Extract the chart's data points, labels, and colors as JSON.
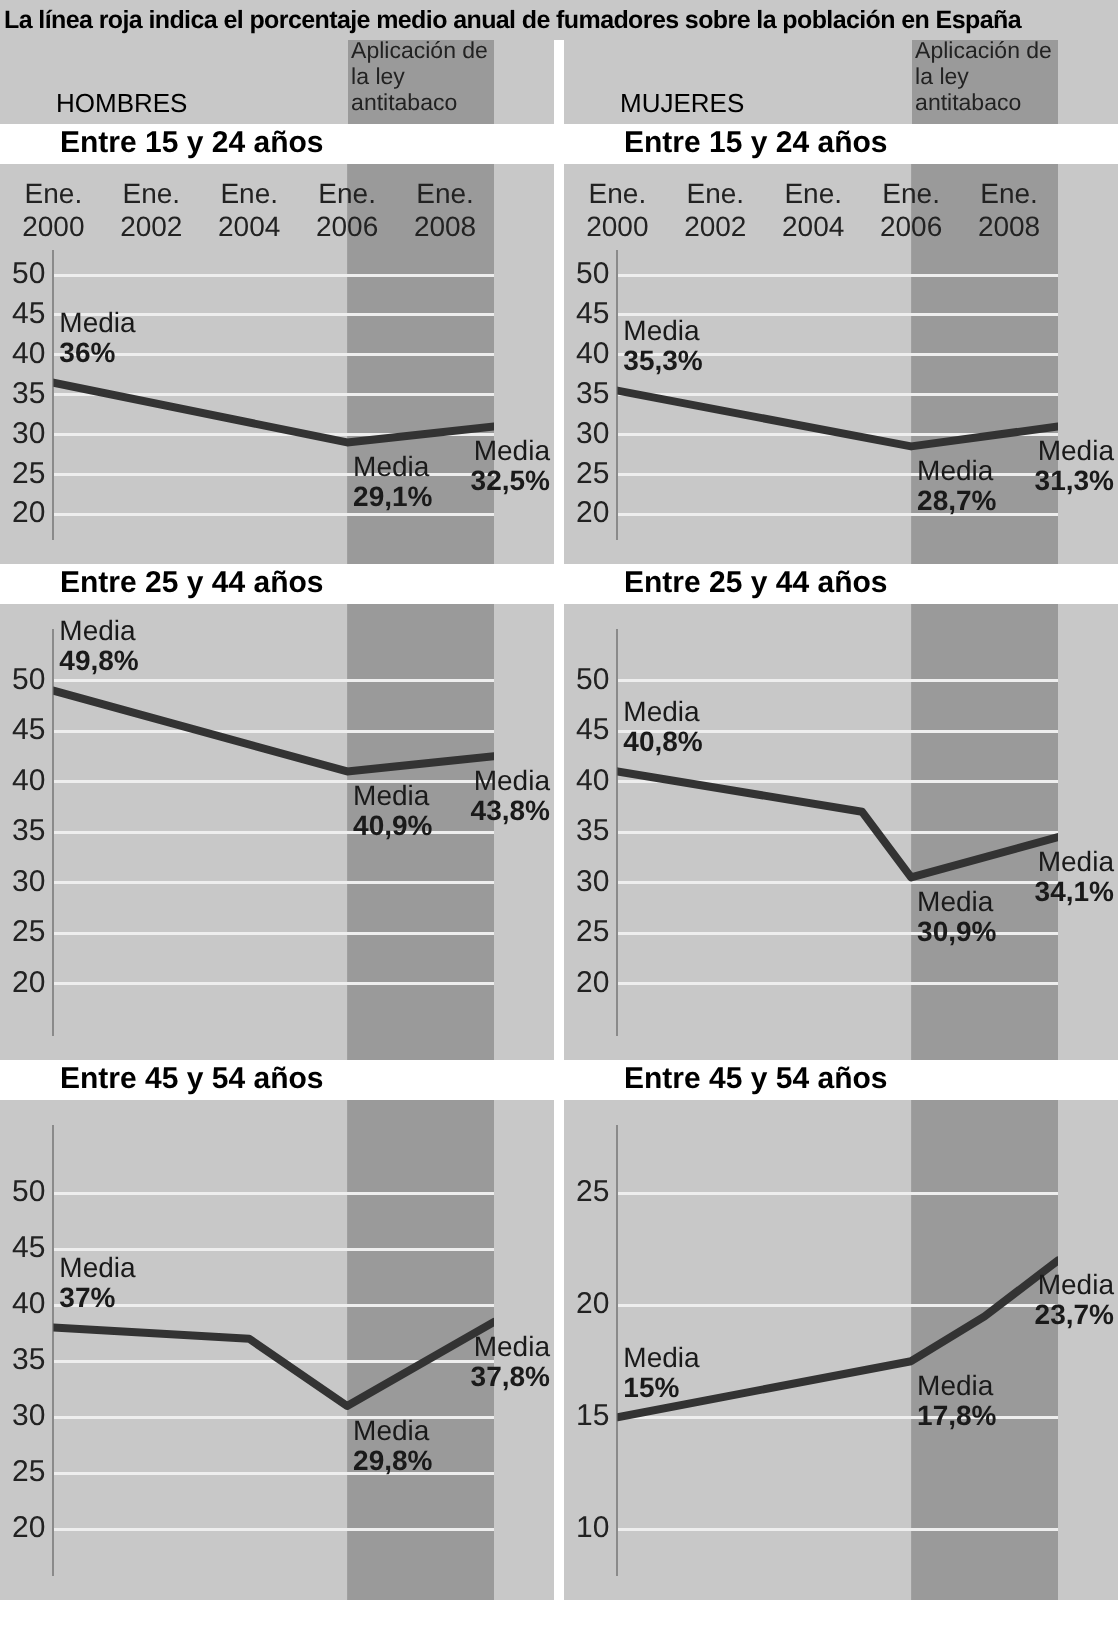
{
  "chart_data": [
    {
      "type": "line",
      "title": "Entre 15 y 24 años",
      "subtitle": "HOMBRES",
      "annotations": [
        "La línea roja indica el porcentaje medio anual de fumadores sobre la población en España",
        {
          "text": "Media 36%",
          "x": 2000,
          "y": 36.5
        },
        {
          "text": "Media 29,1%",
          "x": 2006,
          "y": 29
        },
        {
          "text": "Media 32,5%",
          "x": 2009,
          "y": 31
        }
      ],
      "x": [
        2000,
        2006,
        2009
      ],
      "values": [
        36.5,
        29,
        31
      ],
      "color": "#333333",
      "xlim": [
        2000,
        2009
      ],
      "xticks": [
        {
          "value": 2000,
          "label": "Ene.\n2000"
        },
        {
          "value": 2002,
          "label": "Ene.\n2002"
        },
        {
          "value": 2004,
          "label": "Ene.\n2004"
        },
        {
          "value": 2006,
          "label": "Ene.\n2006"
        },
        {
          "value": 2008,
          "label": "Ene.\n2008"
        }
      ],
      "ylim": [
        17,
        53
      ],
      "yticks": [
        20,
        25,
        30,
        35,
        40,
        45,
        50
      ],
      "grid": "y",
      "marker": "none",
      "bands": [
        {
          "axis": "x",
          "from": 2006,
          "to": 2009,
          "label": "Aplicación de la ley antitabaco",
          "color": "#9a9a9a"
        }
      ]
    },
    {
      "type": "line",
      "title": "Entre 15 y 24 años",
      "subtitle": "MUJERES",
      "annotations": [
        {
          "text": "Media 35,3%",
          "x": 2000,
          "y": 35.5
        },
        {
          "text": "Media 28,7%",
          "x": 2006,
          "y": 28.5
        },
        {
          "text": "Media 31,3%",
          "x": 2009,
          "y": 31
        }
      ],
      "x": [
        2000,
        2006,
        2009
      ],
      "values": [
        35.5,
        28.5,
        31
      ],
      "color": "#333333",
      "xlim": [
        2000,
        2009
      ],
      "xticks": [
        {
          "value": 2000,
          "label": "Ene.\n2000"
        },
        {
          "value": 2002,
          "label": "Ene.\n2002"
        },
        {
          "value": 2004,
          "label": "Ene.\n2004"
        },
        {
          "value": 2006,
          "label": "Ene.\n2006"
        },
        {
          "value": 2008,
          "label": "Ene.\n2008"
        }
      ],
      "ylim": [
        17,
        53
      ],
      "yticks": [
        20,
        25,
        30,
        35,
        40,
        45,
        50
      ],
      "grid": "y",
      "marker": "none",
      "bands": [
        {
          "axis": "x",
          "from": 2006,
          "to": 2009,
          "label": "Aplicación de la ley antitabaco",
          "color": "#9a9a9a"
        }
      ]
    },
    {
      "type": "line",
      "title": "Entre 25 y 44 años",
      "annotations": [
        {
          "text": "Media 49,8%",
          "x": 2000,
          "y": 49
        },
        {
          "text": "Media 40,9%",
          "x": 2006,
          "y": 41
        },
        {
          "text": "Media 43,8%",
          "x": 2009,
          "y": 42.5
        }
      ],
      "x": [
        2000,
        2006,
        2009
      ],
      "values": [
        49,
        41,
        42.5
      ],
      "color": "#333333",
      "xlim": [
        2000,
        2009
      ],
      "ylim": [
        15,
        55
      ],
      "yticks": [
        20,
        25,
        30,
        35,
        40,
        45,
        50
      ],
      "tick_labels": "y",
      "grid": "y",
      "marker": "none",
      "bands": [
        {
          "axis": "x",
          "from": 2006,
          "to": 2009,
          "color": "#9a9a9a"
        }
      ]
    },
    {
      "type": "line",
      "title": "Entre 25 y 44 años",
      "annotations": [
        {
          "text": "Media 40,8%",
          "x": 2000,
          "y": 41
        },
        {
          "text": "Media 30,9%",
          "x": 2006,
          "y": 30.5
        },
        {
          "text": "Media 34,1%",
          "x": 2009,
          "y": 34.5
        }
      ],
      "x": [
        2000,
        2005,
        2006,
        2009
      ],
      "values": [
        41,
        37,
        30.5,
        34.5
      ],
      "color": "#333333",
      "xlim": [
        2000,
        2009
      ],
      "ylim": [
        15,
        55
      ],
      "yticks": [
        20,
        25,
        30,
        35,
        40,
        45,
        50
      ],
      "tick_labels": "y",
      "grid": "y",
      "marker": "none",
      "bands": [
        {
          "axis": "x",
          "from": 2006,
          "to": 2009,
          "color": "#9a9a9a"
        }
      ]
    },
    {
      "type": "line",
      "title": "Entre 45 y 54 años",
      "annotations": [
        {
          "text": "Media 37%",
          "x": 2000,
          "y": 38
        },
        {
          "text": "Media 29,8%",
          "x": 2006,
          "y": 31
        },
        {
          "text": "Media 37,8%",
          "x": 2009,
          "y": 38.5
        }
      ],
      "x": [
        2000,
        2004,
        2006,
        2009
      ],
      "values": [
        38,
        37,
        31,
        38.5
      ],
      "color": "#333333",
      "xlim": [
        2000,
        2009
      ],
      "ylim": [
        16,
        56
      ],
      "yticks": [
        20,
        25,
        30,
        35,
        40,
        45,
        50
      ],
      "tick_labels": "y",
      "grid": "y",
      "marker": "none",
      "bands": [
        {
          "axis": "x",
          "from": 2006,
          "to": 2009,
          "color": "#9a9a9a"
        }
      ]
    },
    {
      "type": "line",
      "title": "Entre 45 y 54 años",
      "annotations": [
        {
          "text": "Media 15%",
          "x": 2000,
          "y": 15
        },
        {
          "text": "Media 17,8%",
          "x": 2006,
          "y": 17.5
        },
        {
          "text": "Media 23,7%",
          "x": 2009,
          "y": 22
        }
      ],
      "x": [
        2000,
        2006,
        2007.5,
        2009
      ],
      "values": [
        15,
        17.5,
        19.5,
        22
      ],
      "color": "#333333",
      "xlim": [
        2000,
        2009
      ],
      "ylim": [
        8,
        28
      ],
      "yticks": [
        10,
        15,
        20,
        25
      ],
      "tick_labels": "y",
      "grid": "y",
      "marker": "none",
      "bands": [
        {
          "axis": "x",
          "from": 2006,
          "to": 2009,
          "color": "#9a9a9a"
        }
      ]
    }
  ]
}
